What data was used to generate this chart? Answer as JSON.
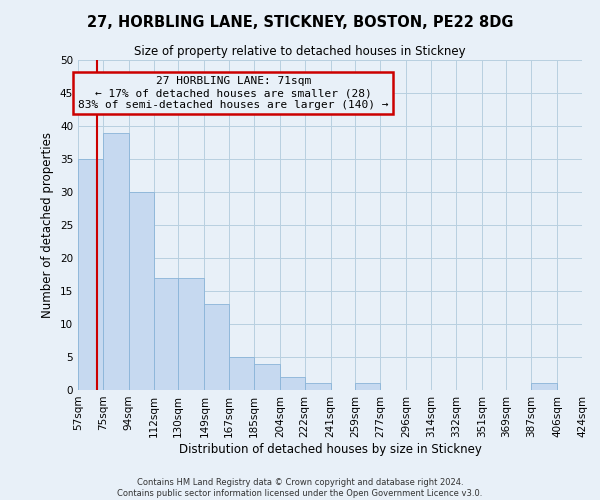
{
  "title": "27, HORBLING LANE, STICKNEY, BOSTON, PE22 8DG",
  "subtitle": "Size of property relative to detached houses in Stickney",
  "xlabel": "Distribution of detached houses by size in Stickney",
  "ylabel": "Number of detached properties",
  "bin_labels": [
    "57sqm",
    "75sqm",
    "94sqm",
    "112sqm",
    "130sqm",
    "149sqm",
    "167sqm",
    "185sqm",
    "204sqm",
    "222sqm",
    "241sqm",
    "259sqm",
    "277sqm",
    "296sqm",
    "314sqm",
    "332sqm",
    "351sqm",
    "369sqm",
    "387sqm",
    "406sqm",
    "424sqm"
  ],
  "bin_edges": [
    57,
    75,
    94,
    112,
    130,
    149,
    167,
    185,
    204,
    222,
    241,
    259,
    277,
    296,
    314,
    332,
    351,
    369,
    387,
    406,
    424
  ],
  "bar_heights": [
    35,
    39,
    30,
    17,
    17,
    13,
    5,
    4,
    2,
    1,
    0,
    1,
    0,
    0,
    0,
    0,
    0,
    0,
    1,
    0
  ],
  "bar_color": "#c6d9f0",
  "bar_edgecolor": "#8ab4d8",
  "property_size": 71,
  "property_line_color": "#cc0000",
  "annotation_text": "27 HORBLING LANE: 71sqm\n← 17% of detached houses are smaller (28)\n83% of semi-detached houses are larger (140) →",
  "annotation_box_color": "#cc0000",
  "annotation_text_color": "#000000",
  "ylim": [
    0,
    50
  ],
  "grid_color": "#b8cfe0",
  "background_color": "#e8f0f8",
  "footer_line1": "Contains HM Land Registry data © Crown copyright and database right 2024.",
  "footer_line2": "Contains public sector information licensed under the Open Government Licence v3.0."
}
